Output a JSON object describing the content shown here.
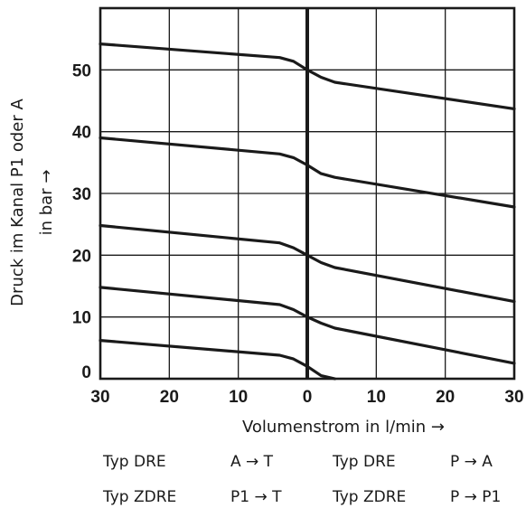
{
  "chart_data": {
    "type": "line",
    "ylabel_line1": "Druck im Kanal P1 oder A",
    "ylabel_line2": "in bar →",
    "xlabel": "Volumenstrom in l/min →",
    "x_ticks": [
      "30",
      "20",
      "10",
      "0",
      "10",
      "20",
      "30"
    ],
    "y_ticks": [
      "0",
      "10",
      "20",
      "30",
      "40",
      "50"
    ],
    "xlim": [
      -30,
      30
    ],
    "ylim": [
      0,
      60
    ],
    "grid": true,
    "series": [
      {
        "points": [
          [
            -30,
            6.2
          ],
          [
            -4,
            3.8
          ],
          [
            -2,
            3.2
          ],
          [
            0,
            2
          ],
          [
            2,
            0.5
          ],
          [
            4,
            0
          ]
        ]
      },
      {
        "points": [
          [
            -30,
            14.8
          ],
          [
            -4,
            12
          ],
          [
            -2,
            11.2
          ],
          [
            0,
            10
          ],
          [
            2,
            9
          ],
          [
            4,
            8.2
          ],
          [
            30,
            2.5
          ]
        ]
      },
      {
        "points": [
          [
            -30,
            24.8
          ],
          [
            -4,
            22
          ],
          [
            -2,
            21.2
          ],
          [
            0,
            20
          ],
          [
            2,
            18.8
          ],
          [
            4,
            18
          ],
          [
            30,
            12.5
          ]
        ]
      },
      {
        "points": [
          [
            -30,
            39
          ],
          [
            -4,
            36.4
          ],
          [
            -2,
            35.8
          ],
          [
            0,
            34.6
          ],
          [
            2,
            33.2
          ],
          [
            4,
            32.6
          ],
          [
            30,
            27.8
          ]
        ]
      },
      {
        "points": [
          [
            -30,
            54.2
          ],
          [
            -4,
            52
          ],
          [
            -2,
            51.4
          ],
          [
            0,
            50
          ],
          [
            2,
            48.8
          ],
          [
            4,
            48
          ],
          [
            30,
            43.7
          ]
        ]
      }
    ],
    "legend_rows": [
      [
        "Typ DRE",
        "A → T",
        "Typ DRE",
        "P → A"
      ],
      [
        "Typ ZDRE",
        "P1 → T",
        "Typ ZDRE",
        "P → P1"
      ]
    ]
  }
}
